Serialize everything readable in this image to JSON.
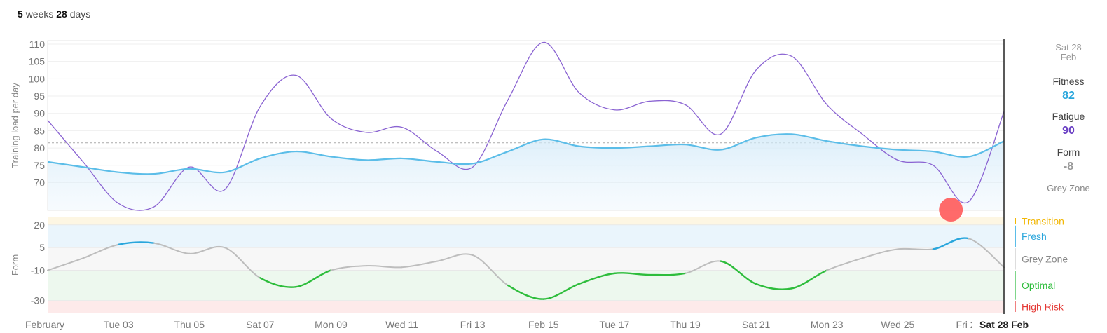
{
  "period": {
    "weeks": "5",
    "weeks_label": "weeks",
    "days": "28",
    "days_label": "days"
  },
  "side_panel": {
    "date_line1": "Sat 28",
    "date_line2": "Feb",
    "fitness_label": "Fitness",
    "fitness_value": "82",
    "fatigue_label": "Fatigue",
    "fatigue_value": "90",
    "form_label": "Form",
    "form_value": "-8",
    "zone": "Grey Zone"
  },
  "colors": {
    "fitness": "#29a6dc",
    "fatigue": "#8a63d2",
    "form_grey": "#bdbdbd",
    "form_optimal": "#2ebd3c",
    "form_fresh": "#29a6dc",
    "transition": "#f2b705",
    "high_risk": "#e53935",
    "marker": "#ff5a5a"
  },
  "chart_data": [
    {
      "type": "line",
      "ylabel": "Training load per day",
      "ylim": [
        62,
        111
      ],
      "yticks": [
        "110",
        "105",
        "100",
        "95",
        "90",
        "85",
        "80",
        "75",
        "70"
      ],
      "ytick_values": [
        110,
        105,
        100,
        95,
        90,
        85,
        80,
        75,
        70
      ],
      "reference_line": 81.5,
      "x": [
        "Feb 01",
        "Feb 02",
        "Feb 03",
        "Feb 04",
        "Feb 05",
        "Feb 06",
        "Feb 07",
        "Feb 08",
        "Feb 09",
        "Feb 10",
        "Feb 11",
        "Feb 12",
        "Feb 13",
        "Feb 14",
        "Feb 15",
        "Feb 16",
        "Feb 17",
        "Feb 18",
        "Feb 19",
        "Feb 20",
        "Feb 21",
        "Feb 22",
        "Feb 23",
        "Feb 24",
        "Feb 25",
        "Feb 26",
        "Feb 27",
        "Feb 28"
      ],
      "series": [
        {
          "name": "Fitness",
          "values": [
            76,
            74.5,
            73,
            72.5,
            74,
            73,
            77,
            79,
            77.5,
            76.5,
            77,
            76,
            75.5,
            79,
            82.5,
            80.5,
            80,
            80.5,
            81,
            79.5,
            83,
            84,
            82,
            80.5,
            79.5,
            79,
            77.5,
            82
          ]
        },
        {
          "name": "Fatigue",
          "values": [
            88,
            76,
            64,
            63,
            74.5,
            68,
            92,
            101,
            88.5,
            84.5,
            86,
            79,
            74.5,
            94,
            110.5,
            96,
            91,
            93.5,
            92.5,
            84,
            102.5,
            106.5,
            92.5,
            84,
            76.5,
            75,
            64.5,
            90.5
          ]
        }
      ]
    },
    {
      "type": "line",
      "ylabel": "Form",
      "ylim": [
        -38,
        25
      ],
      "yticks": [
        "20",
        "5",
        "-10",
        "-30"
      ],
      "ytick_values": [
        20,
        5,
        -10,
        -30
      ],
      "zones": [
        {
          "name": "Transition",
          "from": 20,
          "to": 25
        },
        {
          "name": "Fresh",
          "from": 5,
          "to": 20
        },
        {
          "name": "Grey Zone",
          "from": -10,
          "to": 5
        },
        {
          "name": "Optimal",
          "from": -30,
          "to": -10
        },
        {
          "name": "High Risk",
          "from": -38,
          "to": -30
        }
      ],
      "x": [
        "Feb 01",
        "Feb 02",
        "Feb 03",
        "Feb 04",
        "Feb 05",
        "Feb 06",
        "Feb 07",
        "Feb 08",
        "Feb 09",
        "Feb 10",
        "Feb 11",
        "Feb 12",
        "Feb 13",
        "Feb 14",
        "Feb 15",
        "Feb 16",
        "Feb 17",
        "Feb 18",
        "Feb 19",
        "Feb 20",
        "Feb 21",
        "Feb 22",
        "Feb 23",
        "Feb 24",
        "Feb 25",
        "Feb 26",
        "Feb 27",
        "Feb 28"
      ],
      "series": [
        {
          "name": "Form",
          "values": [
            -10,
            -2,
            7,
            8,
            1,
            5,
            -15,
            -21,
            -10,
            -7,
            -8,
            -4,
            0,
            -20,
            -29,
            -19,
            -12,
            -13,
            -12,
            -4,
            -19,
            -22,
            -10,
            -2,
            4,
            4,
            11,
            -8
          ]
        }
      ],
      "xticks": [
        "February",
        "Tue 03",
        "Thu 05",
        "Sat 07",
        "Mon 09",
        "Wed 11",
        "Fri 13",
        "Feb 15",
        "Tue 17",
        "Thu 19",
        "Sat 21",
        "Mon 23",
        "Wed 25",
        "Fri 27"
      ],
      "xtick_days": [
        1,
        3,
        5,
        7,
        9,
        11,
        13,
        15,
        17,
        19,
        21,
        23,
        25,
        27
      ],
      "current_label": "Sat 28 Feb"
    }
  ]
}
